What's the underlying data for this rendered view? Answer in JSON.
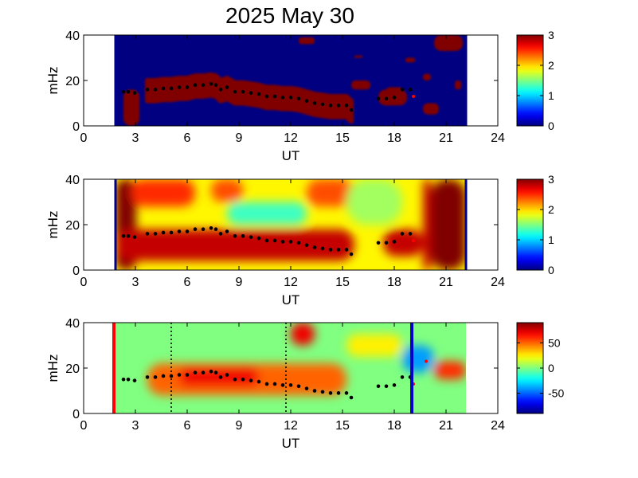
{
  "title": "2025 May 30",
  "colors": {
    "background_panel": "#00008f",
    "red_marker": "#ff0000",
    "blue_marker": "#0000c8",
    "ridge_points": "#000000",
    "stray_points": "#ff0000"
  },
  "chart_data": [
    {
      "type": "heatmap",
      "panel": 1,
      "xlabel": "UT",
      "ylabel": "mHz",
      "xlim": [
        0,
        24
      ],
      "ylim": [
        0,
        40
      ],
      "xticks": [
        "0",
        "3",
        "6",
        "9",
        "12",
        "15",
        "18",
        "21",
        "24"
      ],
      "yticks": [
        "0",
        "20",
        "40"
      ],
      "data_range": [
        1,
        23
      ],
      "colorbar": {
        "min": 0,
        "max": 3,
        "ticks": [
          "0",
          "1",
          "2",
          "3"
        ]
      },
      "grid": false,
      "blobs": [
        {
          "x": [
            1.5,
            2.5
          ],
          "y": [
            0,
            16
          ],
          "value": 3
        },
        {
          "x": [
            3.0,
            16.0
          ],
          "y": [
            4,
            22
          ],
          "value": 3,
          "shape": "ridge"
        },
        {
          "x": [
            11.5,
            14.0
          ],
          "y": [
            8,
            14
          ],
          "value": 3
        },
        {
          "x": [
            12.5,
            13.5
          ],
          "y": [
            36,
            39
          ],
          "value": 3
        },
        {
          "x": [
            16.0,
            16.5
          ],
          "y": [
            30,
            31
          ],
          "value": 3
        },
        {
          "x": [
            15.8,
            17.0
          ],
          "y": [
            16,
            20
          ],
          "value": 3
        },
        {
          "x": [
            17.5,
            19.3
          ],
          "y": [
            9,
            16
          ],
          "value": 3
        },
        {
          "x": [
            18.0,
            19.0
          ],
          "y": [
            14,
            17
          ],
          "value": 3
        },
        {
          "x": [
            19.2,
            19.8
          ],
          "y": [
            28,
            30
          ],
          "value": 3
        },
        {
          "x": [
            20.3,
            20.8
          ],
          "y": [
            20,
            23
          ],
          "value": 3
        },
        {
          "x": [
            20.3,
            21.3
          ],
          "y": [
            5,
            10
          ],
          "value": 3
        },
        {
          "x": [
            21.0,
            22.8
          ],
          "y": [
            33,
            40
          ],
          "value": 3
        },
        {
          "x": [
            22.3,
            22.7
          ],
          "y": [
            16,
            20
          ],
          "value": 3
        }
      ]
    },
    {
      "type": "heatmap",
      "panel": 2,
      "xlabel": "UT",
      "ylabel": "mHz",
      "xlim": [
        0,
        24
      ],
      "ylim": [
        0,
        40
      ],
      "xticks": [
        "0",
        "3",
        "6",
        "9",
        "12",
        "15",
        "18",
        "21",
        "24"
      ],
      "yticks": [
        "0",
        "20",
        "40"
      ],
      "data_range": [
        1,
        23
      ],
      "colorbar": {
        "min": 0,
        "max": 3,
        "ticks": [
          "0",
          "1",
          "2",
          "3"
        ]
      },
      "grid": false,
      "background_value": 1.9,
      "blobs": [
        {
          "x": [
            1.0,
            2.3
          ],
          "y": [
            0,
            40
          ],
          "value": 3
        },
        {
          "x": [
            1.0,
            16.0
          ],
          "y": [
            4,
            18
          ],
          "value": 2.8
        },
        {
          "x": [
            2.0,
            6.0
          ],
          "y": [
            28,
            40
          ],
          "value": 2.5
        },
        {
          "x": [
            7.0,
            9.0
          ],
          "y": [
            30,
            40
          ],
          "value": 2.4
        },
        {
          "x": [
            8.0,
            13.0
          ],
          "y": [
            20,
            30
          ],
          "value": 1.3
        },
        {
          "x": [
            13.0,
            16.0
          ],
          "y": [
            28,
            40
          ],
          "value": 2.4
        },
        {
          "x": [
            15.5,
            19.0
          ],
          "y": [
            20,
            40
          ],
          "value": 1.6
        },
        {
          "x": [
            17.8,
            20.3
          ],
          "y": [
            6,
            18
          ],
          "value": 2.8
        },
        {
          "x": [
            20.3,
            20.8
          ],
          "y": [
            0,
            40
          ],
          "value": 2.8
        },
        {
          "x": [
            20.8,
            23.0
          ],
          "y": [
            0,
            40
          ],
          "value": 3
        }
      ]
    },
    {
      "type": "heatmap",
      "panel": 3,
      "xlabel": "UT",
      "ylabel": "mHz",
      "xlim": [
        0,
        24
      ],
      "ylim": [
        0,
        40
      ],
      "xticks": [
        "0",
        "3",
        "6",
        "9",
        "12",
        "15",
        "18",
        "21",
        "24"
      ],
      "yticks": [
        "0",
        "20",
        "40"
      ],
      "data_range": [
        1,
        23
      ],
      "colorbar": {
        "min": -90,
        "max": 90,
        "ticks": [
          "-50",
          "0",
          "50"
        ]
      },
      "grid": false,
      "background_value": 0,
      "blobs": [
        {
          "x": [
            3.0,
            15.5
          ],
          "y": [
            8,
            22
          ],
          "value": 50
        },
        {
          "x": [
            5.0,
            10.0
          ],
          "y": [
            12,
            20
          ],
          "value": 70
        },
        {
          "x": [
            12.0,
            13.5
          ],
          "y": [
            30,
            40
          ],
          "value": 70
        },
        {
          "x": [
            15.5,
            19.0
          ],
          "y": [
            25,
            35
          ],
          "value": 25
        },
        {
          "x": [
            19.0,
            21.0
          ],
          "y": [
            18,
            30
          ],
          "value": -40
        },
        {
          "x": [
            21.0,
            23.0
          ],
          "y": [
            15,
            23
          ],
          "value": 60
        }
      ],
      "vertical_markers": [
        {
          "x": 0.9,
          "style": "solid",
          "color": "#ff0000"
        },
        {
          "x": 4.5,
          "style": "dotted",
          "color": "#000000"
        },
        {
          "x": 11.7,
          "style": "dotted",
          "color": "#000000"
        },
        {
          "x": 19.6,
          "style": "solid",
          "color": "#0000c8"
        }
      ]
    }
  ],
  "ridge": {
    "x": [
      1.5,
      1.8,
      2.2,
      3.0,
      3.5,
      4.0,
      4.5,
      5.0,
      5.5,
      6.0,
      6.5,
      7.0,
      7.3,
      7.6,
      8.0,
      8.5,
      9.0,
      9.5,
      10.0,
      10.5,
      11.0,
      11.5,
      12.0,
      12.5,
      13.0,
      13.5,
      14.0,
      14.5,
      15.0,
      15.5,
      15.8,
      17.5,
      18.0,
      18.5,
      19.0,
      19.5
    ],
    "y": [
      15,
      15,
      14.5,
      16,
      16,
      16.5,
      16.5,
      17,
      17,
      18,
      18,
      18.5,
      18,
      16,
      17,
      15,
      15,
      14.5,
      14,
      13,
      13,
      12.5,
      12.5,
      12,
      11,
      10,
      9.5,
      9,
      9,
      9,
      7,
      12,
      12,
      12.5,
      16,
      16
    ]
  },
  "stray_points": [
    {
      "x": 19.7,
      "y": 13,
      "panels": [
        1,
        2,
        3
      ]
    },
    {
      "x": 20.5,
      "y": 23,
      "panels": [
        3
      ]
    }
  ]
}
